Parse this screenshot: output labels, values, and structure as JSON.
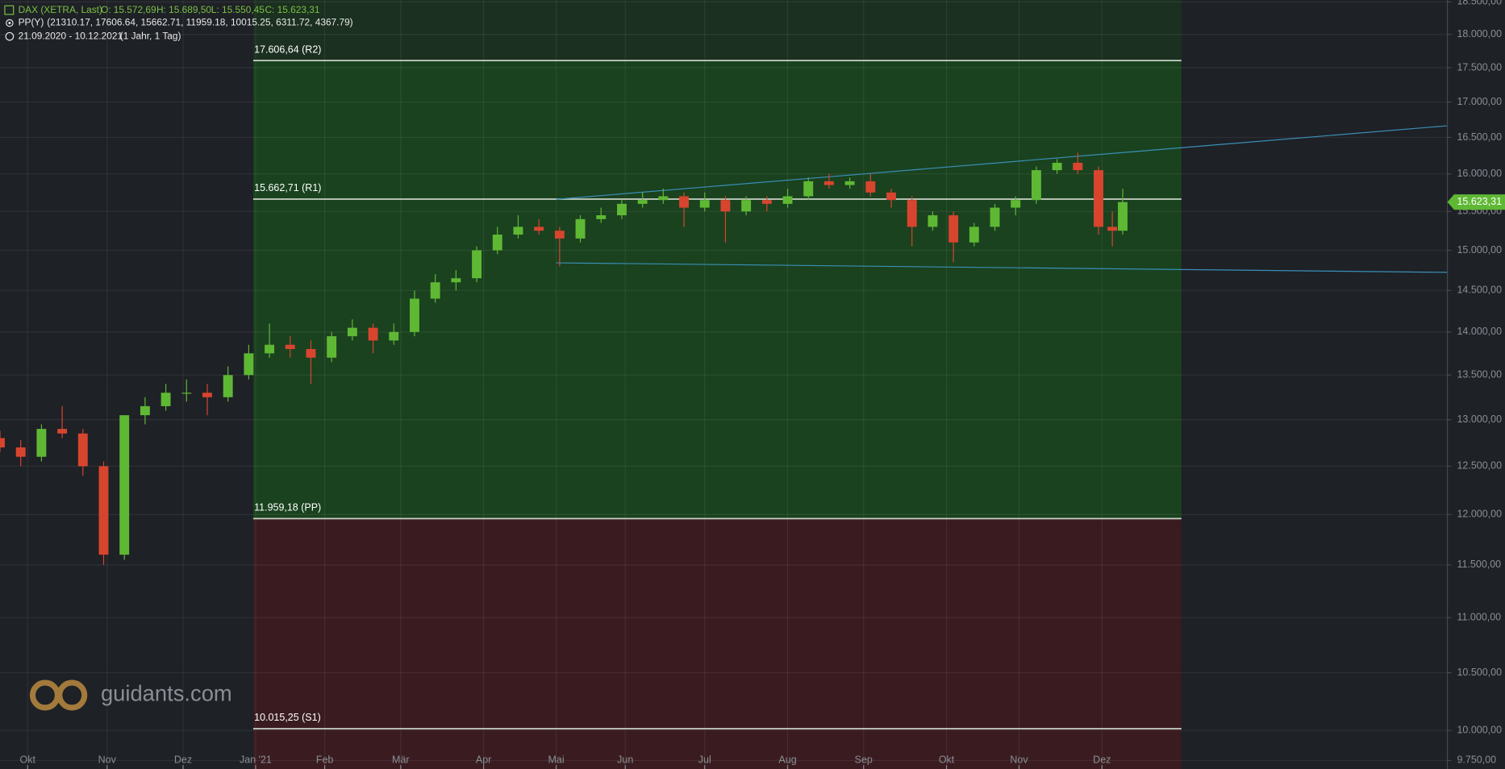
{
  "header": {
    "instrument": "DAX (XETRA, Last)",
    "open": "O: 15.572,69",
    "high": "H: 15.689,50",
    "low": "L: 15.550,45",
    "close": "C: 15.623,31",
    "indicator": "PP(Y)",
    "indicator_values": "(21310.17, 17606.64, 15662.71, 11959.18, 10015.25, 6311.72, 4367.79)",
    "range": "21.09.2020 - 10.12.2021",
    "period": "(1 Jahr, 1 Tag)"
  },
  "watermark": "guidants.com",
  "chart_data": {
    "type": "candlestick",
    "log_scale": true,
    "grid": true,
    "up_color": "#5fb834",
    "down_color": "#d8452f",
    "x": [
      0,
      6,
      12,
      18,
      24,
      30,
      36,
      42,
      48,
      54,
      60,
      66,
      72,
      78,
      84,
      90,
      96,
      102,
      108,
      114,
      120,
      126,
      132,
      138,
      144,
      150,
      156,
      162,
      168,
      174,
      180,
      186,
      192,
      198,
      204,
      210,
      216,
      222,
      228,
      234,
      240,
      246,
      252,
      258,
      264,
      270,
      276,
      282,
      288,
      294,
      300,
      306,
      312,
      318,
      322,
      325
    ],
    "open": [
      12800,
      12700,
      12600,
      12900,
      12850,
      12500,
      11600,
      13050,
      13150,
      13300,
      13300,
      13250,
      13500,
      13750,
      13850,
      13800,
      13700,
      13950,
      14050,
      13900,
      14000,
      14400,
      14600,
      14650,
      15000,
      15200,
      15300,
      15250,
      15150,
      15400,
      15450,
      15600,
      15650,
      15700,
      15550,
      15650,
      15500,
      15650,
      15600,
      15700,
      15900,
      15850,
      15900,
      15750,
      15650,
      15300,
      15450,
      15100,
      15300,
      15550,
      15650,
      16050,
      16150,
      16050,
      15300,
      15250
    ],
    "high": [
      12880,
      12780,
      12950,
      13150,
      12900,
      12550,
      13050,
      13250,
      13400,
      13450,
      13400,
      13600,
      13850,
      14100,
      13950,
      13900,
      14000,
      14150,
      14100,
      14100,
      14500,
      14700,
      14750,
      15050,
      15300,
      15450,
      15400,
      15300,
      15450,
      15550,
      15650,
      15750,
      15800,
      15750,
      15750,
      15700,
      15700,
      15700,
      15800,
      15950,
      16000,
      15950,
      16000,
      15800,
      15700,
      15500,
      15500,
      15350,
      15600,
      15700,
      16100,
      16200,
      16290,
      16100,
      15500,
      15800
    ],
    "low": [
      12650,
      12500,
      12550,
      12800,
      12400,
      11500,
      11550,
      12950,
      13100,
      13200,
      13050,
      13200,
      13450,
      13700,
      13700,
      13400,
      13650,
      13900,
      13750,
      13850,
      13950,
      14350,
      14500,
      14600,
      14950,
      15150,
      15200,
      14800,
      15100,
      15350,
      15400,
      15550,
      15600,
      15300,
      15500,
      15100,
      15450,
      15500,
      15550,
      15650,
      15800,
      15800,
      15700,
      15550,
      15050,
      15250,
      14850,
      15050,
      15250,
      15450,
      15600,
      16000,
      16000,
      15200,
      15050,
      15200
    ],
    "close": [
      12700,
      12600,
      12900,
      12850,
      12500,
      11600,
      13050,
      13150,
      13300,
      13300,
      13250,
      13500,
      13750,
      13850,
      13800,
      13700,
      13950,
      14050,
      13900,
      14000,
      14400,
      14600,
      14650,
      15000,
      15200,
      15300,
      15250,
      15150,
      15400,
      15450,
      15600,
      15650,
      15700,
      15550,
      15650,
      15500,
      15650,
      15600,
      15700,
      15900,
      15850,
      15900,
      15750,
      15650,
      15300,
      15450,
      15100,
      15300,
      15550,
      15650,
      16050,
      16150,
      16050,
      15300,
      15250,
      15623.31
    ],
    "xlim": [
      0,
      419
    ],
    "xticks": [
      {
        "value": 8,
        "label": "Okt"
      },
      {
        "value": 31,
        "label": "Nov"
      },
      {
        "value": 53,
        "label": "Dez"
      },
      {
        "value": 74,
        "label": "Jan '21"
      },
      {
        "value": 94,
        "label": "Feb"
      },
      {
        "value": 116,
        "label": "Mär"
      },
      {
        "value": 140,
        "label": "Apr"
      },
      {
        "value": 161,
        "label": "Mai"
      },
      {
        "value": 181,
        "label": "Jun"
      },
      {
        "value": 204,
        "label": "Jul"
      },
      {
        "value": 228,
        "label": "Aug"
      },
      {
        "value": 250,
        "label": "Sep"
      },
      {
        "value": 274,
        "label": "Okt"
      },
      {
        "value": 295,
        "label": "Nov"
      },
      {
        "value": 319,
        "label": "Dez"
      }
    ],
    "ylim": [
      9680,
      18530
    ],
    "yticks": [
      {
        "value": 9750,
        "label": "9.750,00"
      },
      {
        "value": 10000,
        "label": "10.000,00"
      },
      {
        "value": 10500,
        "label": "10.500,00"
      },
      {
        "value": 11000,
        "label": "11.000,00"
      },
      {
        "value": 11500,
        "label": "11.500,00"
      },
      {
        "value": 12000,
        "label": "12.000,00"
      },
      {
        "value": 12500,
        "label": "12.500,00"
      },
      {
        "value": 13000,
        "label": "13.000,00"
      },
      {
        "value": 13500,
        "label": "13.500,00"
      },
      {
        "value": 14000,
        "label": "14.000,00"
      },
      {
        "value": 14500,
        "label": "14.500,00"
      },
      {
        "value": 15000,
        "label": "15.000,00"
      },
      {
        "value": 15500,
        "label": "15.500,00"
      },
      {
        "value": 16000,
        "label": "16.000,00"
      },
      {
        "value": 16500,
        "label": "16.500,00"
      },
      {
        "value": 17000,
        "label": "17.000,00"
      },
      {
        "value": 17500,
        "label": "17.500,00"
      },
      {
        "value": 18000,
        "label": "18.000,00"
      },
      {
        "value": 18500,
        "label": "18.500,00"
      }
    ],
    "pivot_x": [
      73.3,
      342
    ],
    "pivots": [
      {
        "value": 17606.64,
        "label": "17.606,64 (R2)"
      },
      {
        "value": 15662.71,
        "label": "15.662,71 (R1)"
      },
      {
        "value": 11959.18,
        "label": "11.959,18 (PP)"
      },
      {
        "value": 10015.25,
        "label": "10.015,25 (S1)"
      }
    ],
    "trendlines": [
      {
        "x": [
          161,
          419
        ],
        "values": [
          15660,
          16663
        ]
      },
      {
        "x": [
          161,
          419
        ],
        "values": [
          14842,
          14723
        ]
      }
    ],
    "last_price": {
      "value": 15623.31,
      "label": "15.623,31"
    }
  }
}
